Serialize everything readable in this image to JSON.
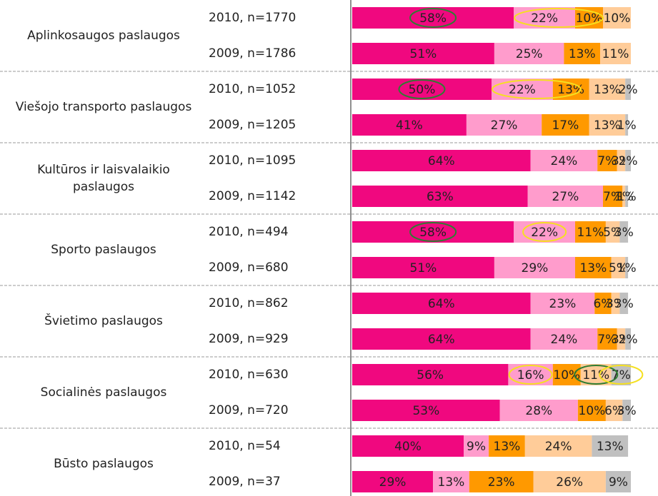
{
  "chart_data": {
    "type": "bar",
    "orientation": "horizontal",
    "stacked": true,
    "group_labels": [
      "Aplinkosaugos paslaugos",
      "Viešojo transporto paslaugos",
      "Kultūros ir laisvalaikio paslaugos",
      "Sporto paslaugos",
      "Švietimo paslaugos",
      "Socialinės paslaugos",
      "Būsto paslaugos"
    ],
    "categories": [
      "2010, n=1770",
      "2009, n=1786",
      "2010, n=1052",
      "2009, n=1205",
      "2010, n=1095",
      "2009, n=1142",
      "2010, n=494",
      "2009, n=680",
      "2010, n=862",
      "2009, n=929",
      "2010, n=630",
      "2009, n=720",
      "2010, n=54",
      "2009, n=37"
    ],
    "xlim": [
      0,
      100
    ],
    "series": [
      {
        "color": "#f0087f",
        "values": [
          58,
          51,
          50,
          41,
          64,
          63,
          58,
          51,
          64,
          64,
          56,
          53,
          40,
          29
        ],
        "value_labels": [
          "58%",
          "51%",
          "50%",
          "41%",
          "64%",
          "63%",
          "58%",
          "51%",
          "64%",
          "64%",
          "56%",
          "53%",
          "40%",
          "29%"
        ]
      },
      {
        "color": "#ff9ccc",
        "values": [
          22,
          25,
          22,
          27,
          24,
          27,
          22,
          29,
          23,
          24,
          16,
          28,
          9,
          13
        ],
        "value_labels": [
          "22%",
          "25%",
          "22%",
          "27%",
          "24%",
          "27%",
          "22%",
          "29%",
          "23%",
          "24%",
          "16%",
          "28%",
          "9%",
          "13%"
        ]
      },
      {
        "color": "#ff9900",
        "values": [
          10,
          13,
          13,
          17,
          7,
          7,
          11,
          13,
          6,
          7,
          10,
          10,
          13,
          23
        ],
        "value_labels": [
          "10%",
          "13%",
          "13%",
          "17%",
          "7%",
          "7%",
          "11%",
          "13%",
          "6%",
          "7%",
          "10%",
          "10%",
          "13%",
          "23%"
        ]
      },
      {
        "color": "#ffcc99",
        "values": [
          10,
          11,
          13,
          13,
          3,
          1,
          5,
          5,
          3,
          3,
          11,
          6,
          24,
          26
        ],
        "value_labels": [
          "10%",
          "11%",
          "13%",
          "13%",
          "3%",
          "1%",
          "5%",
          "5%",
          "3%",
          "3%",
          "11%",
          "6%",
          "24%",
          "26%"
        ]
      },
      {
        "color": "#c0c0c0",
        "values": [
          null,
          null,
          2,
          1,
          2,
          1,
          3,
          1,
          3,
          2,
          7,
          3,
          13,
          9
        ],
        "value_labels": [
          null,
          null,
          "2%",
          "1%",
          "2%",
          "1%",
          "3%",
          "1%",
          "3%",
          "2%",
          "7%",
          "3%",
          "13%",
          "9%"
        ]
      }
    ]
  }
}
